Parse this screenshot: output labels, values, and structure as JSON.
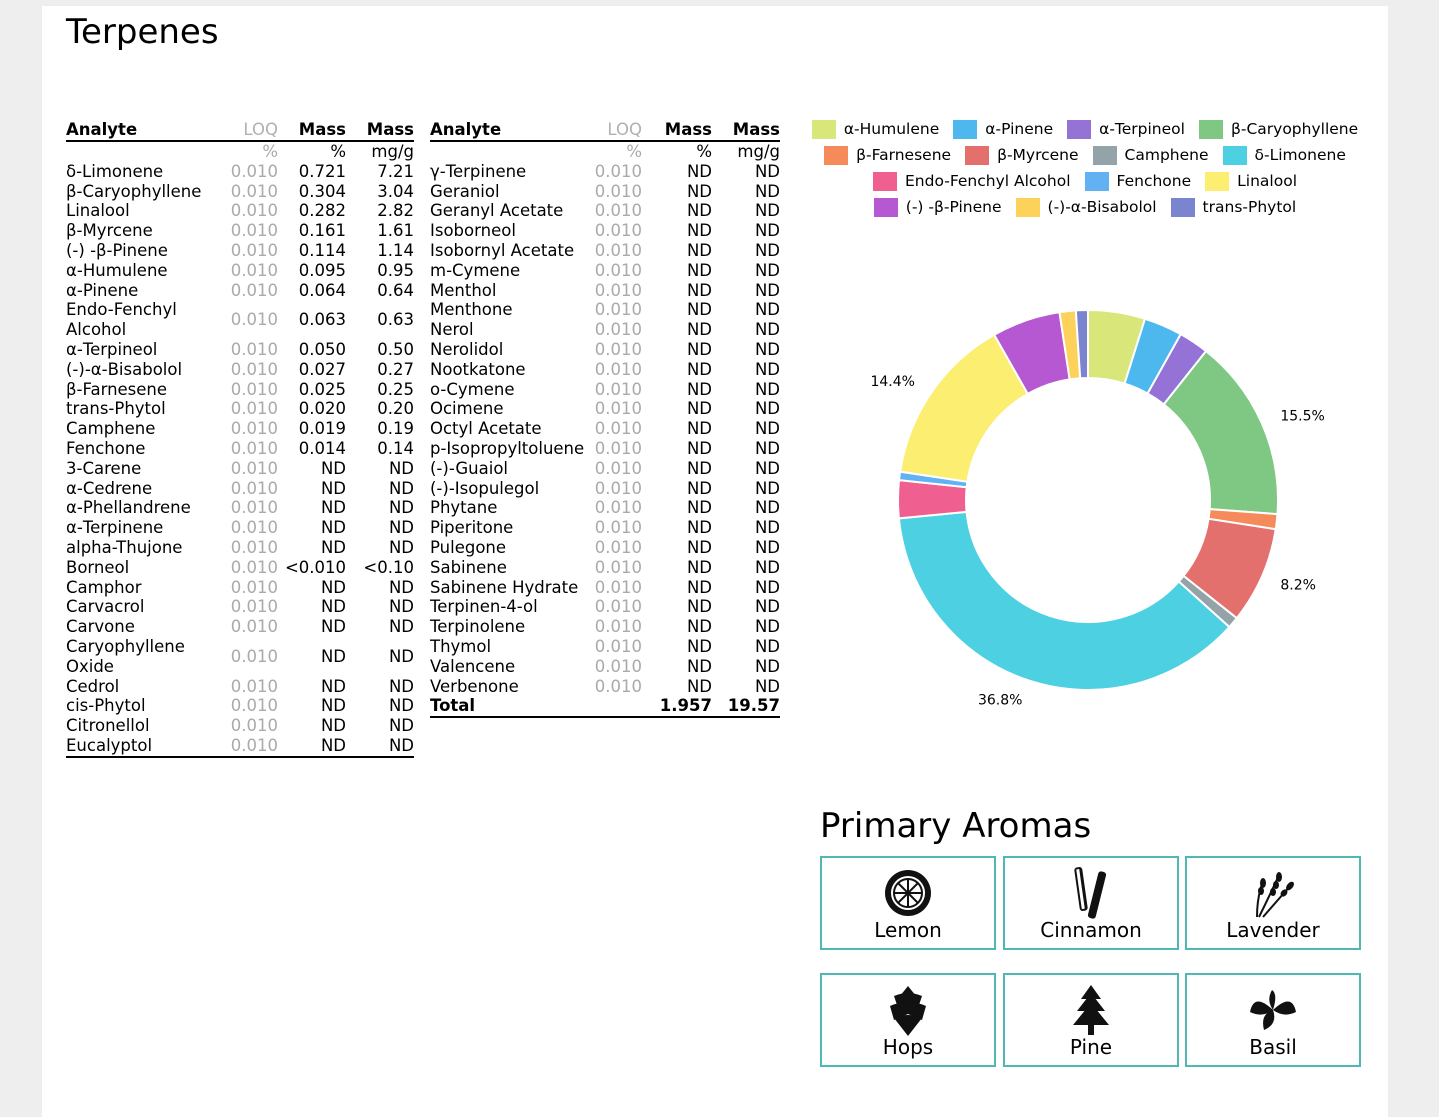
{
  "title": "Terpenes",
  "table_headers": {
    "analyte": "Analyte",
    "loq": "LOQ",
    "mass1": "Mass",
    "mass2": "Mass",
    "unit_loq": "%",
    "unit_mass1": "%",
    "unit_mass2": "mg/g"
  },
  "table1": [
    [
      "δ-Limonene",
      "0.010",
      "0.721",
      "7.21"
    ],
    [
      "β-Caryophyllene",
      "0.010",
      "0.304",
      "3.04"
    ],
    [
      "Linalool",
      "0.010",
      "0.282",
      "2.82"
    ],
    [
      "β-Myrcene",
      "0.010",
      "0.161",
      "1.61"
    ],
    [
      "(-) -β-Pinene",
      "0.010",
      "0.114",
      "1.14"
    ],
    [
      "α-Humulene",
      "0.010",
      "0.095",
      "0.95"
    ],
    [
      "α-Pinene",
      "0.010",
      "0.064",
      "0.64"
    ],
    [
      "Endo-Fenchyl Alcohol",
      "0.010",
      "0.063",
      "0.63"
    ],
    [
      "α-Terpineol",
      "0.010",
      "0.050",
      "0.50"
    ],
    [
      "(-)-α-Bisabolol",
      "0.010",
      "0.027",
      "0.27"
    ],
    [
      "β-Farnesene",
      "0.010",
      "0.025",
      "0.25"
    ],
    [
      "trans-Phytol",
      "0.010",
      "0.020",
      "0.20"
    ],
    [
      "Camphene",
      "0.010",
      "0.019",
      "0.19"
    ],
    [
      "Fenchone",
      "0.010",
      "0.014",
      "0.14"
    ],
    [
      "3-Carene",
      "0.010",
      "ND",
      "ND"
    ],
    [
      "α-Cedrene",
      "0.010",
      "ND",
      "ND"
    ],
    [
      "α-Phellandrene",
      "0.010",
      "ND",
      "ND"
    ],
    [
      "α-Terpinene",
      "0.010",
      "ND",
      "ND"
    ],
    [
      "alpha-Thujone",
      "0.010",
      "ND",
      "ND"
    ],
    [
      "Borneol",
      "0.010",
      "<0.010",
      "<0.10"
    ],
    [
      "Camphor",
      "0.010",
      "ND",
      "ND"
    ],
    [
      "Carvacrol",
      "0.010",
      "ND",
      "ND"
    ],
    [
      "Carvone",
      "0.010",
      "ND",
      "ND"
    ],
    [
      "Caryophyllene Oxide",
      "0.010",
      "ND",
      "ND"
    ],
    [
      "Cedrol",
      "0.010",
      "ND",
      "ND"
    ],
    [
      "cis-Phytol",
      "0.010",
      "ND",
      "ND"
    ],
    [
      "Citronellol",
      "0.010",
      "ND",
      "ND"
    ],
    [
      "Eucalyptol",
      "0.010",
      "ND",
      "ND"
    ]
  ],
  "table2": [
    [
      "γ-Terpinene",
      "0.010",
      "ND",
      "ND"
    ],
    [
      "Geraniol",
      "0.010",
      "ND",
      "ND"
    ],
    [
      "Geranyl Acetate",
      "0.010",
      "ND",
      "ND"
    ],
    [
      "Isoborneol",
      "0.010",
      "ND",
      "ND"
    ],
    [
      "Isobornyl Acetate",
      "0.010",
      "ND",
      "ND"
    ],
    [
      "m-Cymene",
      "0.010",
      "ND",
      "ND"
    ],
    [
      "Menthol",
      "0.010",
      "ND",
      "ND"
    ],
    [
      "Menthone",
      "0.010",
      "ND",
      "ND"
    ],
    [
      "Nerol",
      "0.010",
      "ND",
      "ND"
    ],
    [
      "Nerolidol",
      "0.010",
      "ND",
      "ND"
    ],
    [
      "Nootkatone",
      "0.010",
      "ND",
      "ND"
    ],
    [
      "o-Cymene",
      "0.010",
      "ND",
      "ND"
    ],
    [
      "Ocimene",
      "0.010",
      "ND",
      "ND"
    ],
    [
      "Octyl Acetate",
      "0.010",
      "ND",
      "ND"
    ],
    [
      "p-Isopropyltoluene",
      "0.010",
      "ND",
      "ND"
    ],
    [
      "(-)-Guaiol",
      "0.010",
      "ND",
      "ND"
    ],
    [
      "(-)-Isopulegol",
      "0.010",
      "ND",
      "ND"
    ],
    [
      "Phytane",
      "0.010",
      "ND",
      "ND"
    ],
    [
      "Piperitone",
      "0.010",
      "ND",
      "ND"
    ],
    [
      "Pulegone",
      "0.010",
      "ND",
      "ND"
    ],
    [
      "Sabinene",
      "0.010",
      "ND",
      "ND"
    ],
    [
      "Sabinene Hydrate",
      "0.010",
      "ND",
      "ND"
    ],
    [
      "Terpinen-4-ol",
      "0.010",
      "ND",
      "ND"
    ],
    [
      "Terpinolene",
      "0.010",
      "ND",
      "ND"
    ],
    [
      "Thymol",
      "0.010",
      "ND",
      "ND"
    ],
    [
      "Valencene",
      "0.010",
      "ND",
      "ND"
    ],
    [
      "Verbenone",
      "0.010",
      "ND",
      "ND"
    ]
  ],
  "total": {
    "label": "Total",
    "mass_pct": "1.957",
    "mass_mgg": "19.57"
  },
  "chart_data": {
    "type": "pie",
    "donut": true,
    "legend_position": "top",
    "slices": [
      {
        "name": "α-Humulene",
        "value": 0.095,
        "color": "#d9e67a"
      },
      {
        "name": "α-Pinene",
        "value": 0.064,
        "color": "#4cb8ee"
      },
      {
        "name": "α-Terpineol",
        "value": 0.05,
        "color": "#9573d6"
      },
      {
        "name": "β-Caryophyllene",
        "value": 0.304,
        "color": "#7ec884"
      },
      {
        "name": "β-Farnesene",
        "value": 0.025,
        "color": "#f58a5b"
      },
      {
        "name": "β-Myrcene",
        "value": 0.161,
        "color": "#e4706d"
      },
      {
        "name": "Camphene",
        "value": 0.019,
        "color": "#94a3a8"
      },
      {
        "name": "δ-Limonene",
        "value": 0.721,
        "color": "#4dd0e1"
      },
      {
        "name": "Endo-Fenchyl Alcohol",
        "value": 0.063,
        "color": "#ef5f90"
      },
      {
        "name": "Fenchone",
        "value": 0.014,
        "color": "#62b2f3"
      },
      {
        "name": "Linalool",
        "value": 0.282,
        "color": "#fbee70"
      },
      {
        "name": "(-) -β-Pinene",
        "value": 0.114,
        "color": "#b558d2"
      },
      {
        "name": "(-)-α-Bisabolol",
        "value": 0.027,
        "color": "#fcd25a"
      },
      {
        "name": "trans-Phytol",
        "value": 0.02,
        "color": "#7b84cf"
      }
    ],
    "data_labels": [
      {
        "slice": "β-Caryophyllene",
        "text": "15.5%"
      },
      {
        "slice": "β-Myrcene",
        "text": "8.2%"
      },
      {
        "slice": "δ-Limonene",
        "text": "36.8%"
      },
      {
        "slice": "Linalool",
        "text": "14.4%"
      }
    ]
  },
  "aromas": {
    "title": "Primary Aromas",
    "items": [
      {
        "label": "Lemon",
        "icon": "lemon-icon"
      },
      {
        "label": "Cinnamon",
        "icon": "cinnamon-icon"
      },
      {
        "label": "Lavender",
        "icon": "lavender-icon"
      },
      {
        "label": "Hops",
        "icon": "hops-icon"
      },
      {
        "label": "Pine",
        "icon": "pine-icon"
      },
      {
        "label": "Basil",
        "icon": "basil-icon"
      }
    ],
    "border_color": "#4fb8b4"
  }
}
